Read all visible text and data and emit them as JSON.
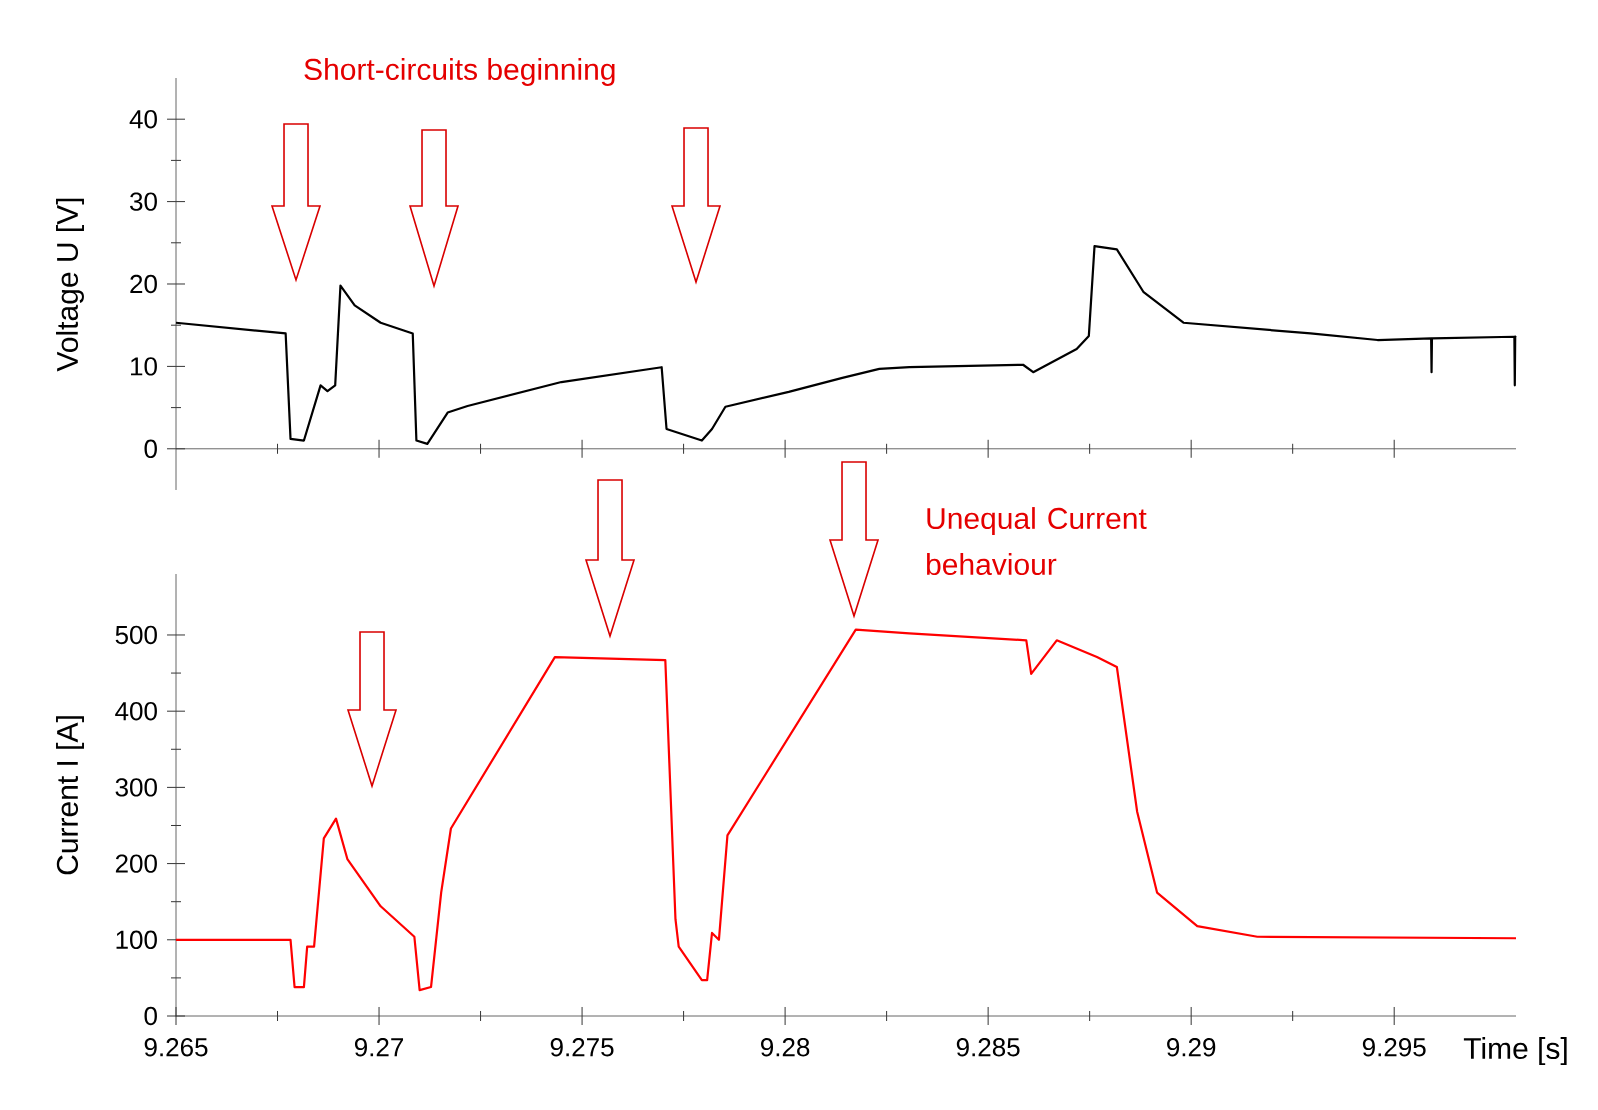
{
  "chart_data": [
    {
      "type": "line",
      "ylabel": "Voltage  U [V]",
      "xlim": [
        9.265,
        9.298
      ],
      "xticks": [
        9.265,
        9.27,
        9.275,
        9.28,
        9.285,
        9.29,
        9.295
      ],
      "ylim": [
        -5,
        45
      ],
      "yticks": [
        0,
        10,
        20,
        30,
        40
      ],
      "tick_labels": "y",
      "annotations": [
        "Short-circuits beginning"
      ],
      "series": [
        {
          "color": "#000000",
          "x": [
            9.265,
            9.2677,
            9.26782,
            9.26815,
            9.26856,
            9.26873,
            9.26892,
            9.26905,
            9.2694,
            9.27004,
            9.27083,
            9.27092,
            9.27119,
            9.27169,
            9.27218,
            9.27449,
            9.27696,
            9.27708,
            9.27795,
            9.2782,
            9.27853,
            9.28009,
            9.28141,
            9.28232,
            9.28306,
            9.28586,
            9.28611,
            9.28718,
            9.28748,
            9.28762,
            9.28817,
            9.28883,
            9.28981,
            9.29294,
            9.29459,
            9.29591,
            9.29592,
            9.29593,
            9.29796,
            9.29797,
            9.29798,
            9.298
          ],
          "values": [
            15.3,
            14.0,
            1.2,
            1.0,
            7.7,
            7.0,
            7.7,
            19.8,
            17.4,
            15.3,
            14.0,
            1.0,
            0.6,
            4.4,
            5.2,
            8.1,
            9.9,
            2.4,
            1.0,
            2.4,
            5.1,
            6.9,
            8.6,
            9.7,
            9.9,
            10.2,
            9.3,
            12.1,
            13.7,
            24.6,
            24.2,
            19.0,
            15.3,
            14.0,
            13.2,
            13.4,
            9.3,
            13.4,
            13.6,
            7.7,
            13.6,
            13.7
          ]
        }
      ]
    },
    {
      "type": "line",
      "xlabel": "Time [s]",
      "ylabel": "Current  I [A]",
      "xlim": [
        9.265,
        9.298
      ],
      "xticks": [
        9.265,
        9.27,
        9.275,
        9.28,
        9.285,
        9.29,
        9.295
      ],
      "ylim": [
        0,
        580
      ],
      "yticks": [
        0,
        100,
        200,
        300,
        400,
        500
      ],
      "annotations": [
        "Unequal Current behaviour"
      ],
      "series": [
        {
          "color": "#ff0000",
          "x": [
            9.265,
            9.26782,
            9.26792,
            9.26815,
            9.26823,
            9.2684,
            9.26864,
            9.26894,
            9.26922,
            9.27004,
            9.27087,
            9.271,
            9.27128,
            9.27153,
            9.27177,
            9.27433,
            9.27705,
            9.2773,
            9.27738,
            9.27795,
            9.27808,
            9.2782,
            9.27837,
            9.27858,
            9.28174,
            9.28306,
            9.28594,
            9.28606,
            9.28669,
            9.28768,
            9.28817,
            9.28867,
            9.28916,
            9.29015,
            9.29163,
            9.298
          ],
          "values": [
            100,
            100,
            38,
            38,
            91,
            91,
            233,
            259,
            206,
            144,
            104,
            34,
            38,
            162,
            246,
            471,
            467,
            127,
            91,
            47,
            47,
            109,
            100,
            237,
            507,
            502,
            493,
            449,
            493,
            471,
            458,
            268,
            162,
            118,
            104,
            102
          ]
        }
      ]
    }
  ]
}
